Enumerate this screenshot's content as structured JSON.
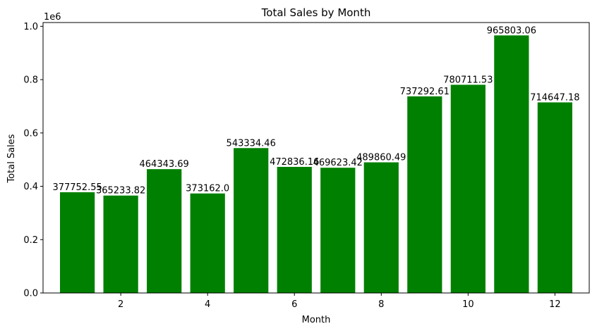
{
  "chart_data": {
    "type": "bar",
    "title": "Total Sales by Month",
    "xlabel": "Month",
    "ylabel": "Total Sales",
    "y_scale_label": "1e6",
    "color": "#008000",
    "categories": [
      1,
      2,
      3,
      4,
      5,
      6,
      7,
      8,
      9,
      10,
      11,
      12
    ],
    "values": [
      377752.55,
      365233.82,
      464343.69,
      373162.0,
      543334.46,
      472836.16,
      469623.42,
      489860.49,
      737292.61,
      780711.53,
      965803.06,
      714647.18
    ],
    "bar_labels": [
      "377752.55",
      "365233.82",
      "464343.69",
      "373162.0",
      "543334.46",
      "472836.16",
      "469623.42",
      "489860.49",
      "737292.61",
      "780711.53",
      "965803.06",
      "714647.18"
    ],
    "x_ticks": [
      2,
      4,
      6,
      8,
      10,
      12
    ],
    "x_tick_labels": [
      "2",
      "4",
      "6",
      "8",
      "10",
      "12"
    ],
    "y_ticks": [
      0,
      200000,
      400000,
      600000,
      800000,
      1000000
    ],
    "y_tick_labels": [
      "0.0",
      "0.2",
      "0.4",
      "0.6",
      "0.8",
      "1.0"
    ],
    "xlim": [
      0.21,
      12.79
    ],
    "ylim": [
      0,
      1014093.21
    ],
    "grid": false,
    "legend": "none"
  }
}
